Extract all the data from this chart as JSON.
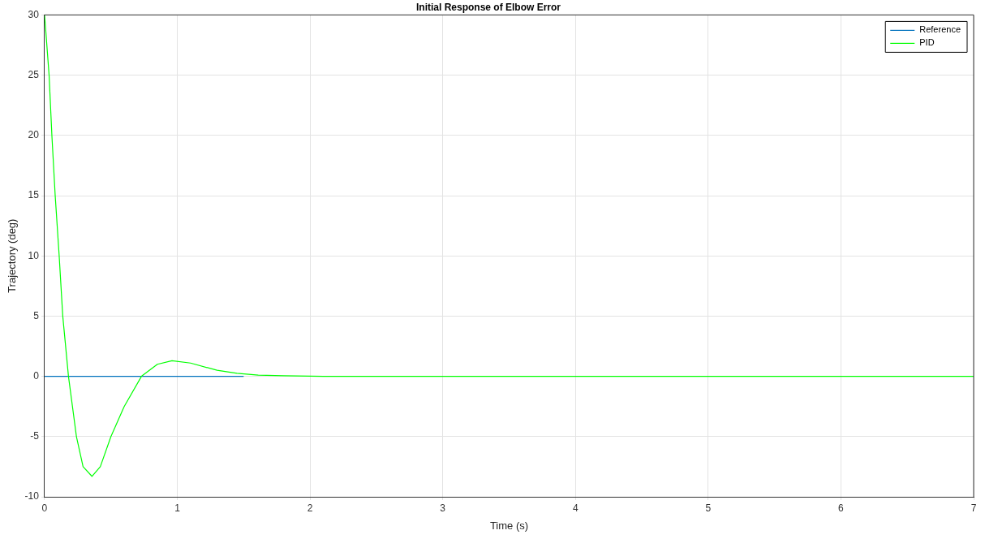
{
  "chart_data": {
    "type": "line",
    "title": "Initial Response of Elbow Error",
    "xlabel": "Time (s)",
    "ylabel": "Trajectory (deg)",
    "xlim": [
      0,
      7
    ],
    "xticks": [
      0,
      1,
      2,
      3,
      4,
      5,
      6,
      7
    ],
    "ylim": [
      -10,
      30
    ],
    "yticks": [
      -10,
      -5,
      0,
      5,
      10,
      15,
      20,
      25,
      30
    ],
    "grid": true,
    "legend": "top right",
    "marker": "none",
    "line_style": "solid",
    "series": [
      {
        "name": "Reference",
        "color": "#0072bd",
        "x": [
          0,
          1,
          1.5
        ],
        "values": [
          0,
          0,
          0
        ]
      },
      {
        "name": "PID",
        "color": "#00ff00",
        "x": [
          0,
          0.034,
          0.055,
          0.08,
          0.11,
          0.137,
          0.18,
          0.24,
          0.29,
          0.357,
          0.42,
          0.5,
          0.6,
          0.73,
          0.85,
          0.96,
          1.1,
          1.3,
          1.45,
          1.61,
          1.8,
          2.1,
          3,
          4,
          5,
          6,
          7
        ],
        "values": [
          30,
          25,
          20,
          15,
          10,
          5,
          0,
          -5,
          -7.5,
          -8.3,
          -7.5,
          -5,
          -2.5,
          0,
          1,
          1.3,
          1.1,
          0.5,
          0.25,
          0.1,
          0.05,
          0,
          0,
          0,
          0,
          0,
          0
        ]
      }
    ]
  }
}
